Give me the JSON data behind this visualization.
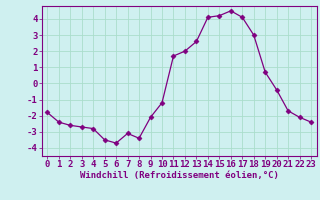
{
  "x": [
    0,
    1,
    2,
    3,
    4,
    5,
    6,
    7,
    8,
    9,
    10,
    11,
    12,
    13,
    14,
    15,
    16,
    17,
    18,
    19,
    20,
    21,
    22,
    23
  ],
  "y": [
    -1.8,
    -2.4,
    -2.6,
    -2.7,
    -2.8,
    -3.5,
    -3.7,
    -3.1,
    -3.4,
    -2.1,
    -1.2,
    1.7,
    2.0,
    2.6,
    4.1,
    4.2,
    4.5,
    4.1,
    3.0,
    0.7,
    -0.4,
    -1.7,
    -2.1,
    -2.4
  ],
  "line_color": "#800080",
  "marker": "D",
  "marker_size": 2.5,
  "bg_color": "#cff0f0",
  "grid_color": "#aaddcc",
  "xlabel": "Windchill (Refroidissement éolien,°C)",
  "ylabel": "",
  "title": "",
  "xlim": [
    -0.5,
    23.5
  ],
  "ylim": [
    -4.5,
    4.8
  ],
  "yticks": [
    -4,
    -3,
    -2,
    -1,
    0,
    1,
    2,
    3,
    4
  ],
  "xticks": [
    0,
    1,
    2,
    3,
    4,
    5,
    6,
    7,
    8,
    9,
    10,
    11,
    12,
    13,
    14,
    15,
    16,
    17,
    18,
    19,
    20,
    21,
    22,
    23
  ],
  "label_color": "#800080",
  "tick_color": "#800080",
  "spine_color": "#800080",
  "tick_fontsize": 6.5,
  "label_fontsize": 6.5
}
